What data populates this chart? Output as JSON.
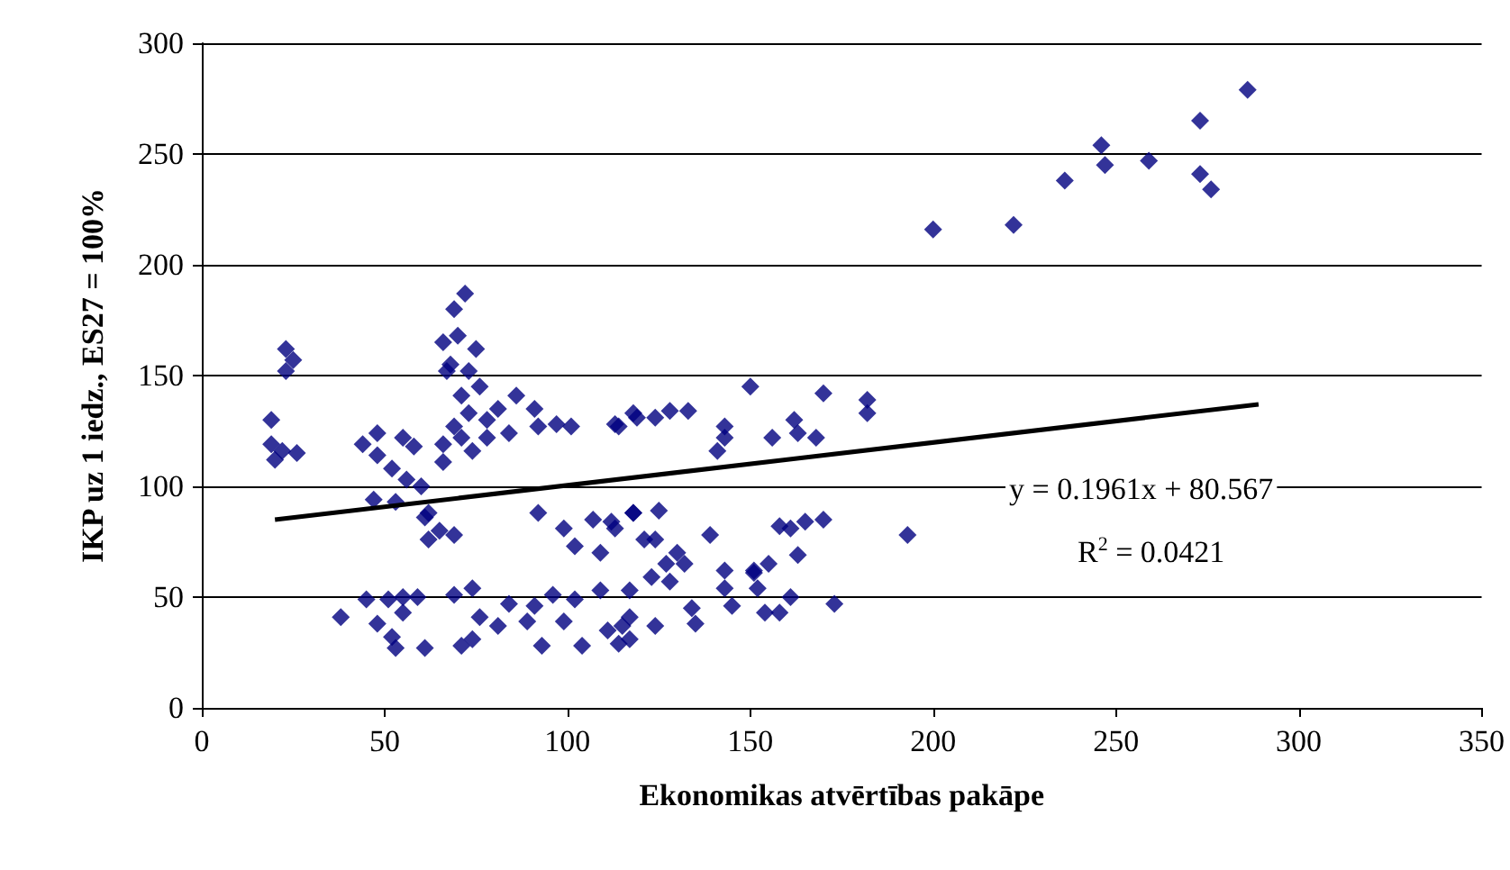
{
  "chart_data": {
    "type": "scatter",
    "xlabel": "Ekonomikas atvērtības pakāpe",
    "ylabel": "IKP uz 1 iedz., ES27 = 100%",
    "xlim": [
      0,
      350
    ],
    "ylim": [
      0,
      300
    ],
    "xticks": [
      0,
      50,
      100,
      150,
      200,
      250,
      300,
      350
    ],
    "yticks": [
      0,
      50,
      100,
      150,
      200,
      250,
      300
    ],
    "grid": "y",
    "marker": "diamond",
    "annotations": [
      "y = 0.1961x + 80.567",
      "R$^{2}$ = 0.0421"
    ],
    "series": [
      {
        "color": "#000080",
        "x": [
          222,
          236,
          246,
          247,
          259,
          273,
          273,
          276,
          286,
          200,
          193,
          113,
          119,
          124,
          128,
          133,
          143,
          143,
          141,
          150,
          156,
          162,
          163,
          168,
          170,
          182,
          182,
          118,
          125,
          113,
          121,
          124,
          139,
          130,
          127,
          132,
          123,
          128,
          117,
          143,
          151,
          151,
          155,
          143,
          152,
          158,
          161,
          165,
          170,
          163,
          145,
          154,
          158,
          161,
          173,
          134,
          135,
          124,
          115,
          117,
          72,
          69,
          23,
          25,
          23,
          66,
          70,
          75,
          68,
          67,
          73,
          19,
          19,
          22,
          26,
          20,
          48,
          44,
          55,
          58,
          48,
          52,
          56,
          60,
          47,
          53,
          62,
          66,
          71,
          74,
          66,
          71,
          76,
          73,
          78,
          81,
          86,
          84,
          91,
          92,
          97,
          101,
          114,
          118,
          78,
          69,
          61,
          65,
          62,
          69,
          38,
          45,
          51,
          55,
          59,
          48,
          52,
          53,
          61,
          55,
          69,
          74,
          76,
          71,
          74,
          81,
          84,
          91,
          96,
          89,
          99,
          102,
          93,
          104,
          109,
          111,
          114,
          117,
          92,
          99,
          102,
          109,
          107,
          112,
          118
        ],
        "values": [
          218,
          238,
          254,
          245,
          247,
          265,
          241,
          234,
          279,
          216,
          78,
          128,
          131,
          131,
          134,
          134,
          127,
          122,
          116,
          145,
          122,
          130,
          124,
          122,
          142,
          139,
          133,
          88,
          89,
          81,
          76,
          76,
          78,
          70,
          65,
          65,
          59,
          57,
          53,
          62,
          61,
          62,
          65,
          54,
          54,
          82,
          81,
          84,
          85,
          69,
          46,
          43,
          43,
          50,
          47,
          45,
          38,
          37,
          37,
          31,
          187,
          180,
          162,
          157,
          152,
          165,
          168,
          162,
          155,
          152,
          152,
          130,
          119,
          116,
          115,
          112,
          124,
          119,
          122,
          118,
          114,
          108,
          103,
          100,
          94,
          93,
          88,
          119,
          122,
          116,
          111,
          141,
          145,
          133,
          130,
          135,
          141,
          124,
          135,
          127,
          128,
          127,
          127,
          133,
          122,
          127,
          86,
          80,
          76,
          78,
          41,
          49,
          49,
          50,
          50,
          38,
          32,
          27,
          27,
          43,
          51,
          54,
          41,
          28,
          31,
          37,
          47,
          46,
          51,
          39,
          39,
          49,
          28,
          28,
          53,
          35,
          29,
          41,
          88,
          81,
          73,
          70,
          85,
          84,
          88
        ]
      },
      {
        "type": "line",
        "color": "#000000",
        "x": [
          20,
          289
        ],
        "values": [
          85,
          137
        ],
        "marker": "none"
      }
    ]
  }
}
